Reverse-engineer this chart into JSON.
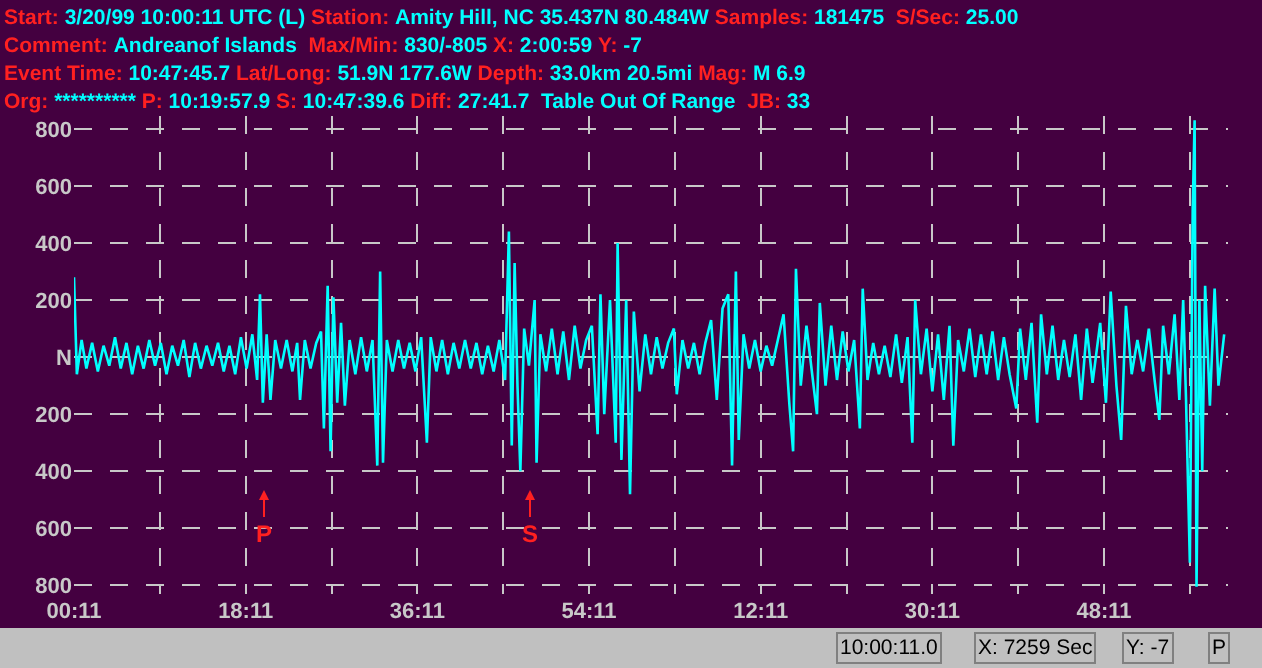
{
  "chart_data": {
    "type": "line",
    "annotations": [
      "Start: 3/20/99 10:00:11 UTC (L) Station: Amity Hill, NC 35.437N 80.484W Samples: 181475  S/Sec: 25.00",
      "Comment: Andreanof Islands  Max/Min: 830/-805 X: 2:00:59 Y: -7",
      "Event Time: 10:47:45.7 Lat/Long: 51.9N 177.6W Depth: 33.0km 20.5mi Mag: M 6.9",
      "Org: ********** P: 10:19:57.9 S: 10:47:39.6 Diff: 27:41.7  Table Out Of Range  JB: 33",
      "P",
      "S",
      "10:00:11.0",
      "X: 7259 Sec",
      "Y: -7",
      "P"
    ],
    "series": [
      {
        "color": "#00ffff",
        "x": [
          "--03-20T10:00:11",
          "--03-20T10:00:29",
          "--03-20T10:00:59",
          "--03-20T10:01:29",
          "--03-20T10:02:05",
          "--03-20T10:02:41",
          "--03-20T10:03:17",
          "--03-20T10:03:53",
          "--03-20T10:04:29",
          "--03-20T10:05:05",
          "--03-20T10:05:41",
          "--03-20T10:06:17",
          "--03-20T10:06:53",
          "--03-20T10:07:29",
          "--03-20T10:08:05",
          "--03-20T10:08:41",
          "--03-20T10:09:17",
          "--03-20T10:09:53",
          "--03-20T10:10:29",
          "--03-20T10:11:05",
          "--03-20T10:11:41",
          "--03-20T10:12:17",
          "--03-20T10:12:53",
          "--03-20T10:13:29",
          "--03-20T10:14:05",
          "--03-20T10:14:41",
          "--03-20T10:15:17",
          "--03-20T10:15:53",
          "--03-20T10:16:29",
          "--03-20T10:17:05",
          "--03-20T10:17:41",
          "--03-20T10:18:17",
          "--03-20T10:18:53",
          "--03-20T10:19:23",
          "--03-20T10:19:41",
          "--03-20T10:19:59",
          "--03-20T10:20:23",
          "--03-20T10:20:47",
          "--03-20T10:21:17",
          "--03-20T10:21:53",
          "--03-20T10:22:29",
          "--03-20T10:23:05",
          "--03-20T10:23:35",
          "--03-20T10:23:53",
          "--03-20T10:24:23",
          "--03-20T10:24:59",
          "--03-20T10:25:35",
          "--03-20T10:26:05",
          "--03-20T10:26:23",
          "--03-20T10:26:47",
          "--03-20T10:27:05",
          "--03-20T10:27:23",
          "--03-20T10:27:47",
          "--03-20T10:28:11",
          "--03-20T10:28:35",
          "--03-20T10:29:05",
          "--03-20T10:29:41",
          "--03-20T10:30:17",
          "--03-20T10:30:53",
          "--03-20T10:31:29",
          "--03-20T10:31:59",
          "--03-20T10:32:17",
          "--03-20T10:32:35",
          "--03-20T10:32:59",
          "--03-20T10:33:35",
          "--03-20T10:34:11",
          "--03-20T10:34:47",
          "--03-20T10:35:23",
          "--03-20T10:35:59",
          "--03-20T10:36:35",
          "--03-20T10:37:11",
          "--03-20T10:37:35",
          "--03-20T10:38:11",
          "--03-20T10:38:47",
          "--03-20T10:39:23",
          "--03-20T10:39:59",
          "--03-20T10:40:35",
          "--03-20T10:41:11",
          "--03-20T10:41:47",
          "--03-20T10:42:23",
          "--03-20T10:42:59",
          "--03-20T10:43:35",
          "--03-20T10:44:11",
          "--03-20T10:44:47",
          "--03-20T10:45:23",
          "--03-20T10:45:47",
          "--03-20T10:46:05",
          "--03-20T10:46:23",
          "--03-20T10:46:41",
          "--03-20T10:46:59",
          "--03-20T10:47:23",
          "--03-20T10:47:53",
          "--03-20T10:48:29",
          "--03-20T10:48:41",
          "--03-20T10:49:05",
          "--03-20T10:49:41",
          "--03-20T10:50:17",
          "--03-20T10:50:53",
          "--03-20T10:51:29",
          "--03-20T10:52:05",
          "--03-20T10:52:41",
          "--03-20T10:53:17",
          "--03-20T10:53:53",
          "--03-20T10:54:29",
          "--03-20T10:55:05",
          "--03-20T10:55:23",
          "--03-20T10:55:47",
          "--03-20T10:56:23",
          "--03-20T10:56:59",
          "--03-20T10:57:11",
          "--03-20T10:57:35",
          "--03-20T10:58:05",
          "--03-20T10:58:29",
          "--03-20T10:58:53",
          "--03-20T10:59:29",
          "--03-20T11:00:05",
          "--03-20T11:00:41",
          "--03-20T11:01:17",
          "--03-20T11:01:53",
          "--03-20T11:02:29",
          "--03-20T11:03:05",
          "--03-20T11:03:23",
          "--03-20T11:03:59",
          "--03-20T11:04:35",
          "--03-20T11:05:11",
          "--03-20T11:05:47",
          "--03-20T11:06:23",
          "--03-20T11:06:59",
          "--03-20T11:07:35",
          "--03-20T11:08:11",
          "--03-20T11:08:47",
          "--03-20T11:09:11",
          "--03-20T11:09:35",
          "--03-20T11:09:53",
          "--03-20T11:10:23",
          "--03-20T11:10:59",
          "--03-20T11:11:35",
          "--03-20T11:12:11",
          "--03-20T11:12:47",
          "--03-20T11:13:23",
          "--03-20T11:13:59",
          "--03-20T11:14:35",
          "--03-20T11:15:11",
          "--03-20T11:15:35",
          "--03-20T11:15:53",
          "--03-20T11:16:23",
          "--03-20T11:16:59",
          "--03-20T11:17:35",
          "--03-20T11:18:05",
          "--03-20T11:18:23",
          "--03-20T11:18:59",
          "--03-20T11:19:35",
          "--03-20T11:20:11",
          "--03-20T11:20:47",
          "--03-20T11:21:23",
          "--03-20T11:21:59",
          "--03-20T11:22:35",
          "--03-20T11:22:53",
          "--03-20T11:23:23",
          "--03-20T11:23:59",
          "--03-20T11:24:35",
          "--03-20T11:25:11",
          "--03-20T11:25:47",
          "--03-20T11:26:23",
          "--03-20T11:26:59",
          "--03-20T11:27:35",
          "--03-20T11:28:05",
          "--03-20T11:28:23",
          "--03-20T11:28:59",
          "--03-20T11:29:35",
          "--03-20T11:30:11",
          "--03-20T11:30:47",
          "--03-20T11:31:23",
          "--03-20T11:31:59",
          "--03-20T11:32:23",
          "--03-20T11:32:53",
          "--03-20T11:33:29",
          "--03-20T11:34:05",
          "--03-20T11:34:41",
          "--03-20T11:35:17",
          "--03-20T11:35:53",
          "--03-20T11:36:29",
          "--03-20T11:37:05",
          "--03-20T11:37:41",
          "--03-20T11:38:17",
          "--03-20T11:38:59",
          "--03-20T11:39:23",
          "--03-20T11:39:59",
          "--03-20T11:40:35",
          "--03-20T11:41:11",
          "--03-20T11:41:35",
          "--03-20T11:42:11",
          "--03-20T11:42:47",
          "--03-20T11:43:23",
          "--03-20T11:43:59",
          "--03-20T11:44:35",
          "--03-20T11:45:11",
          "--03-20T11:45:47",
          "--03-20T11:46:23",
          "--03-20T11:46:59",
          "--03-20T11:47:47",
          "--03-20T11:48:23",
          "--03-20T11:48:53",
          "--03-20T11:49:29",
          "--03-20T11:49:59",
          "--03-20T11:50:29",
          "--03-20T11:51:05",
          "--03-20T11:51:41",
          "--03-20T11:52:17",
          "--03-20T11:52:53",
          "--03-20T11:53:29",
          "--03-20T11:53:59",
          "--03-20T11:54:23",
          "--03-20T11:54:59",
          "--03-20T11:55:35",
          "--03-20T11:56:05",
          "--03-20T11:56:29",
          "--03-20T11:56:47",
          "--03-20T11:57:11",
          "--03-20T11:57:29",
          "--03-20T11:57:41",
          "--03-20T11:57:53",
          "--03-20T11:58:11",
          "--03-20T11:58:29",
          "--03-20T11:58:47",
          "--03-20T11:59:17",
          "--03-20T11:59:47",
          "--03-20T12:00:11",
          "--03-20T12:00:47"
        ],
        "values": [
          280,
          -60,
          60,
          -40,
          50,
          -50,
          40,
          -30,
          70,
          -40,
          50,
          -60,
          40,
          -40,
          60,
          -30,
          50,
          -60,
          40,
          -30,
          60,
          -70,
          50,
          -40,
          40,
          -30,
          50,
          -50,
          40,
          -60,
          70,
          -40,
          80,
          -80,
          220,
          -160,
          80,
          -150,
          60,
          -40,
          60,
          -50,
          50,
          -150,
          60,
          -40,
          50,
          90,
          -250,
          250,
          -330,
          210,
          -160,
          120,
          -170,
          60,
          -60,
          70,
          -50,
          60,
          -380,
          300,
          -370,
          60,
          -50,
          60,
          -40,
          50,
          -50,
          70,
          -300,
          70,
          -50,
          60,
          -60,
          50,
          -40,
          60,
          -40,
          50,
          -60,
          40,
          -50,
          60,
          -80,
          440,
          -310,
          330,
          -100,
          -400,
          100,
          -30,
          200,
          -370,
          80,
          -50,
          100,
          -60,
          90,
          -80,
          110,
          -40,
          60,
          110,
          -270,
          220,
          -200,
          200,
          -300,
          400,
          -360,
          200,
          -480,
          160,
          -120,
          80,
          -60,
          70,
          -40,
          50,
          100,
          -130,
          60,
          -40,
          50,
          -60,
          50,
          130,
          -150,
          170,
          220,
          -380,
          300,
          -290,
          80,
          -40,
          60,
          -50,
          40,
          -30,
          60,
          150,
          -160,
          -330,
          310,
          -100,
          110,
          -60,
          -200,
          190,
          -100,
          110,
          -80,
          90,
          -50,
          60,
          -250,
          240,
          -80,
          50,
          -60,
          40,
          -70,
          80,
          -90,
          70,
          -300,
          200,
          -60,
          100,
          -120,
          80,
          -150,
          110,
          -310,
          60,
          -50,
          100,
          -70,
          80,
          -60,
          90,
          -80,
          70,
          -60,
          -180,
          100,
          -80,
          120,
          -230,
          150,
          -60,
          110,
          -80,
          60,
          -70,
          80,
          -150,
          100,
          -90,
          120,
          -160,
          230,
          -100,
          -290,
          180,
          -60,
          60,
          -50,
          100,
          -80,
          -220,
          110,
          -60,
          150,
          -150,
          200,
          -150,
          -720,
          520,
          830,
          -805,
          200,
          -400,
          250,
          -170,
          240,
          -100,
          80
        ]
      }
    ],
    "xlim": [
      "--03-20T10:00:11",
      "--03-20T12:01:11"
    ],
    "xticks": [
      {
        "value": "--03-20T10:00:11",
        "label": "00:11"
      },
      {
        "value": "--03-20T10:09:11",
        "label": null
      },
      {
        "value": "--03-20T10:18:11",
        "label": "18:11"
      },
      {
        "value": "--03-20T10:27:11",
        "label": null
      },
      {
        "value": "--03-20T10:36:11",
        "label": "36:11"
      },
      {
        "value": "--03-20T10:45:11",
        "label": null
      },
      {
        "value": "--03-20T10:54:11",
        "label": "54:11"
      },
      {
        "value": "--03-20T11:03:11",
        "label": null
      },
      {
        "value": "--03-20T11:12:11",
        "label": "12:11"
      },
      {
        "value": "--03-20T11:21:11",
        "label": null
      },
      {
        "value": "--03-20T11:30:11",
        "label": "30:11"
      },
      {
        "value": "--03-20T11:39:11",
        "label": null
      },
      {
        "value": "--03-20T11:48:11",
        "label": "48:11"
      },
      {
        "value": "--03-20T11:57:11",
        "label": null
      }
    ],
    "ylim": [
      -830,
      845
    ],
    "yticks": [
      {
        "value": 800,
        "label": "800"
      },
      {
        "value": 600,
        "label": "600"
      },
      {
        "value": 400,
        "label": "400"
      },
      {
        "value": 200,
        "label": "200"
      },
      {
        "value": 0,
        "label": "N"
      },
      {
        "value": -200,
        "label": "200"
      },
      {
        "value": -400,
        "label": "400"
      },
      {
        "value": -600,
        "label": "600"
      },
      {
        "value": -800,
        "label": "800"
      }
    ],
    "grid": true,
    "marker": "none",
    "line_style": "solid"
  }
}
